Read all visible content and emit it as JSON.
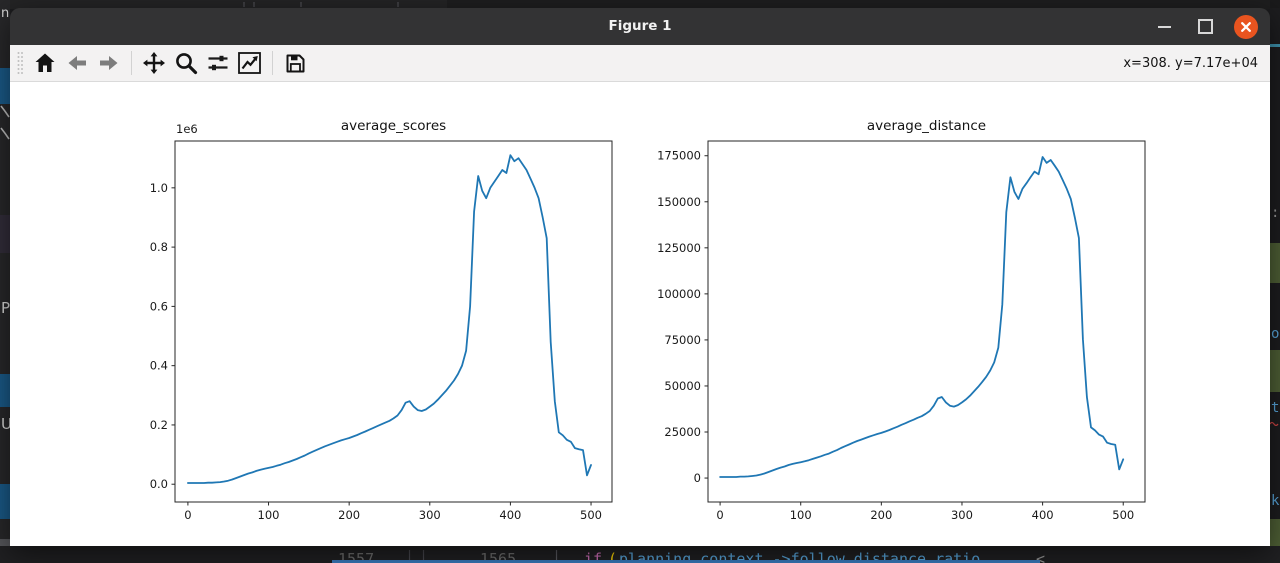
{
  "window": {
    "title": "Figure 1"
  },
  "toolbar": {
    "cursor_readout": "x=308. y=7.17e+04",
    "buttons": [
      {
        "id": "home",
        "label": "Home"
      },
      {
        "id": "back",
        "label": "Back"
      },
      {
        "id": "forward",
        "label": "Forward"
      },
      {
        "id": "pan",
        "label": "Pan"
      },
      {
        "id": "zoom",
        "label": "Zoom"
      },
      {
        "id": "subplots",
        "label": "Configure subplots"
      },
      {
        "id": "customize",
        "label": "Edit axis"
      },
      {
        "id": "save",
        "label": "Save"
      }
    ]
  },
  "chart_data": [
    {
      "type": "line",
      "title": "average_scores",
      "xlabel": "",
      "ylabel": "",
      "offset_text": "1e6",
      "grid": false,
      "legend": null,
      "color": "#1f77b4",
      "xlim": [
        -16,
        526
      ],
      "ylim": [
        -60000,
        1158000
      ],
      "xticks": [
        0,
        100,
        200,
        300,
        400,
        500
      ],
      "ytick_values": [
        0,
        200000,
        400000,
        600000,
        800000,
        1000000
      ],
      "ytick_labels": [
        "0.0",
        "0.2",
        "0.4",
        "0.6",
        "0.8",
        "1.0"
      ],
      "x": [
        0,
        5,
        10,
        15,
        20,
        25,
        30,
        35,
        40,
        45,
        50,
        55,
        60,
        65,
        70,
        75,
        80,
        85,
        90,
        95,
        100,
        105,
        110,
        115,
        120,
        125,
        130,
        135,
        140,
        145,
        150,
        155,
        160,
        165,
        170,
        175,
        180,
        185,
        190,
        195,
        200,
        205,
        210,
        215,
        220,
        225,
        230,
        235,
        240,
        245,
        250,
        255,
        260,
        265,
        270,
        275,
        280,
        285,
        290,
        295,
        300,
        305,
        310,
        315,
        320,
        325,
        330,
        335,
        340,
        345,
        350,
        355,
        360,
        365,
        370,
        375,
        380,
        385,
        390,
        395,
        400,
        405,
        410,
        415,
        420,
        425,
        430,
        435,
        440,
        445,
        450,
        455,
        460,
        465,
        470,
        475,
        480,
        485,
        490,
        495,
        500
      ],
      "values": [
        4000,
        4000,
        4000,
        4000,
        4000,
        5000,
        5000,
        6000,
        7000,
        9000,
        12000,
        16000,
        21000,
        26000,
        31000,
        36000,
        40000,
        45000,
        49000,
        52000,
        55000,
        58000,
        62000,
        66000,
        71000,
        75000,
        80000,
        85000,
        91000,
        97000,
        104000,
        110000,
        116000,
        122000,
        128000,
        133000,
        138000,
        143000,
        148000,
        152000,
        156000,
        161000,
        166000,
        172000,
        178000,
        184000,
        190000,
        196000,
        202000,
        208000,
        214000,
        222000,
        232000,
        250000,
        275000,
        280000,
        262000,
        250000,
        247000,
        252000,
        262000,
        272000,
        285000,
        300000,
        315000,
        332000,
        350000,
        372000,
        400000,
        450000,
        600000,
        920000,
        1040000,
        990000,
        965000,
        1000000,
        1020000,
        1040000,
        1060000,
        1050000,
        1110000,
        1090000,
        1100000,
        1080000,
        1060000,
        1030000,
        1000000,
        965000,
        900000,
        830000,
        480000,
        280000,
        175000,
        165000,
        150000,
        143000,
        122000,
        118000,
        115000,
        30000,
        65000
      ]
    },
    {
      "type": "line",
      "title": "average_distance",
      "xlabel": "",
      "ylabel": "",
      "offset_text": "",
      "grid": false,
      "legend": null,
      "color": "#1f77b4",
      "xlim": [
        -15,
        527
      ],
      "ylim": [
        -13000,
        183000
      ],
      "xticks": [
        0,
        100,
        200,
        300,
        400,
        500
      ],
      "ytick_values": [
        0,
        25000,
        50000,
        75000,
        100000,
        125000,
        150000,
        175000
      ],
      "ytick_labels": [
        "0",
        "25000",
        "50000",
        "75000",
        "100000",
        "125000",
        "150000",
        "175000"
      ],
      "x": [
        0,
        5,
        10,
        15,
        20,
        25,
        30,
        35,
        40,
        45,
        50,
        55,
        60,
        65,
        70,
        75,
        80,
        85,
        90,
        95,
        100,
        105,
        110,
        115,
        120,
        125,
        130,
        135,
        140,
        145,
        150,
        155,
        160,
        165,
        170,
        175,
        180,
        185,
        190,
        195,
        200,
        205,
        210,
        215,
        220,
        225,
        230,
        235,
        240,
        245,
        250,
        255,
        260,
        265,
        270,
        275,
        280,
        285,
        290,
        295,
        300,
        305,
        310,
        315,
        320,
        325,
        330,
        335,
        340,
        345,
        350,
        355,
        360,
        365,
        370,
        375,
        380,
        385,
        390,
        395,
        400,
        405,
        410,
        415,
        420,
        425,
        430,
        435,
        440,
        445,
        450,
        455,
        460,
        465,
        470,
        475,
        480,
        485,
        490,
        495,
        500
      ],
      "values": [
        600,
        600,
        600,
        600,
        600,
        800,
        800,
        900,
        1100,
        1400,
        1900,
        2500,
        3300,
        4100,
        4900,
        5700,
        6300,
        7100,
        7700,
        8200,
        8600,
        9100,
        9700,
        10400,
        11100,
        11800,
        12600,
        13300,
        14300,
        15200,
        16300,
        17300,
        18200,
        19200,
        20100,
        20900,
        21700,
        22500,
        23200,
        23900,
        24500,
        25300,
        26100,
        27000,
        27900,
        28900,
        29800,
        30800,
        31700,
        32700,
        33600,
        34900,
        36400,
        39300,
        43200,
        44000,
        41100,
        39300,
        38800,
        39600,
        41100,
        42700,
        44700,
        47100,
        49500,
        52100,
        55000,
        58400,
        62800,
        70700,
        94200,
        144400,
        163300,
        155400,
        151500,
        157000,
        160100,
        163300,
        166400,
        164900,
        174300,
        171100,
        172700,
        169600,
        166400,
        161700,
        157000,
        151500,
        141300,
        130300,
        75400,
        44000,
        27500,
        25900,
        23600,
        22500,
        19200,
        18500,
        18100,
        4700,
        10200
      ]
    }
  ],
  "background": {
    "left_edge": {
      "letters": [
        "n",
        "P",
        "U"
      ]
    },
    "right_edge": {
      "letters": [
        ":",
        "o",
        "t",
        "k"
      ]
    },
    "bottom_code": {
      "line_number_old": "1557",
      "gutter_bars": "││",
      "line_number_new": "1565",
      "separator": "│",
      "keyword": "if",
      "open_paren": "(",
      "expression": "planning_context_->follow_distance_ratio_",
      "comparison": "<"
    },
    "colors": {
      "plot_line_blue": "#1f77b4",
      "close_button_orange": "#e9541f",
      "activity_bar_blue": "#1a5a88",
      "minimap_green": "#4e5f35",
      "code_blue": "#58a6dc",
      "keyword_pink": "#cb6eb5",
      "bracket_yellow": "#ffd602",
      "selection_blue": "#3a7bbf",
      "teal_accent": "#3e93ad"
    }
  }
}
